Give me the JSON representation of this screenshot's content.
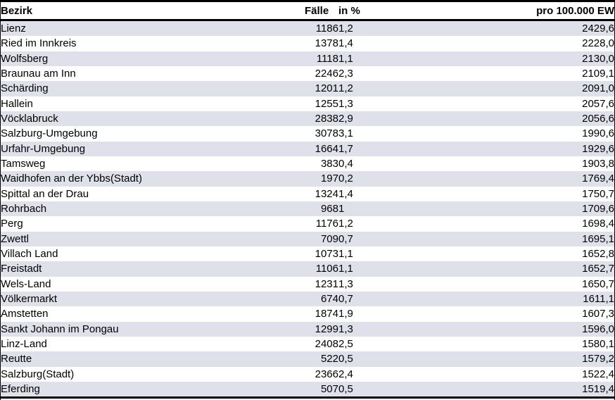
{
  "chart_data": {
    "type": "table",
    "title": "",
    "columns": [
      "Bezirk",
      "Fälle",
      "in %",
      "pro 100.000 EW"
    ],
    "column_keys": [
      "bezirk",
      "faelle",
      "in-percent",
      "per-100000-ew"
    ],
    "rows": [
      [
        "Lienz",
        "1186",
        "1,2",
        "2429,6"
      ],
      [
        "Ried im Innkreis",
        "1378",
        "1,4",
        "2228,0"
      ],
      [
        "Wolfsberg",
        "1118",
        "1,1",
        "2130,0"
      ],
      [
        "Braunau am Inn",
        "2246",
        "2,3",
        "2109,1"
      ],
      [
        "Schärding",
        "1201",
        "1,2",
        "2091,0"
      ],
      [
        "Hallein",
        "1255",
        "1,3",
        "2057,6"
      ],
      [
        "Vöcklabruck",
        "2838",
        "2,9",
        "2056,6"
      ],
      [
        "Salzburg-Umgebung",
        "3078",
        "3,1",
        "1990,6"
      ],
      [
        "Urfahr-Umgebung",
        "1664",
        "1,7",
        "1929,6"
      ],
      [
        "Tamsweg",
        "383",
        "0,4",
        "1903,8"
      ],
      [
        "Waidhofen an der Ybbs(Stadt)",
        "197",
        "0,2",
        "1769,4"
      ],
      [
        "Spittal an der Drau",
        "1324",
        "1,4",
        "1750,7"
      ],
      [
        "Rohrbach",
        "968",
        "1",
        "1709,6"
      ],
      [
        "Perg",
        "1176",
        "1,2",
        "1698,4"
      ],
      [
        "Zwettl",
        "709",
        "0,7",
        "1695,1"
      ],
      [
        "Villach Land",
        "1073",
        "1,1",
        "1652,8"
      ],
      [
        "Freistadt",
        "1106",
        "1,1",
        "1652,7"
      ],
      [
        "Wels-Land",
        "1231",
        "1,3",
        "1650,7"
      ],
      [
        "Völkermarkt",
        "674",
        "0,7",
        "1611,1"
      ],
      [
        "Amstetten",
        "1874",
        "1,9",
        "1607,3"
      ],
      [
        "Sankt Johann im Pongau",
        "1299",
        "1,3",
        "1596,0"
      ],
      [
        "Linz-Land",
        "2408",
        "2,5",
        "1580,1"
      ],
      [
        "Reutte",
        "522",
        "0,5",
        "1579,2"
      ],
      [
        "Salzburg(Stadt)",
        "2366",
        "2,4",
        "1522,4"
      ],
      [
        "Eferding",
        "507",
        "0,5",
        "1519,4"
      ]
    ],
    "layout": {
      "striped": true,
      "stripe_color": "#dfe1ea",
      "border_color": "#000000",
      "header_bold": true,
      "decimal_separator": ","
    }
  }
}
